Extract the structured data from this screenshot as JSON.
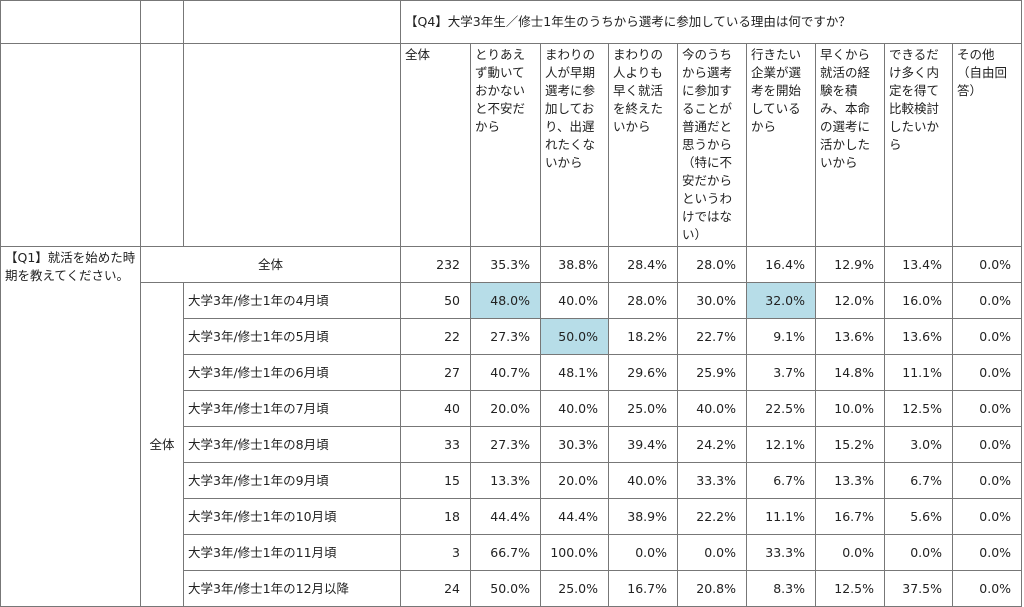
{
  "header": {
    "q4_title": "【Q4】大学3年生／修士1年生のうちから選考に参加している理由は何ですか？",
    "q1_title": "【Q1】就活を始めた時期を教えてください。",
    "columns": [
      "全体",
      "とりあえず動いておかないと不安だから",
      "まわりの人が早期選考に参加しており、出遅れたくないから",
      "まわりの人よりも早く就活を終えたいから",
      "今のうちから選考に参加することが普通だと思うから（特に不安だからというわけではない）",
      "行きたい企業が選考を開始しているから",
      "早くから就活の経験を積み、本命の選考に活かしたいから",
      "できるだけ多く内定を得て比較検討したいから",
      "その他（自由回答）"
    ]
  },
  "table": {
    "total": {
      "label": "全体",
      "n": "232",
      "values": [
        "35.3%",
        "38.8%",
        "28.4%",
        "28.0%",
        "16.4%",
        "12.9%",
        "13.4%",
        "0.0%"
      ]
    },
    "group_label": "全体",
    "rows": [
      {
        "label": "大学3年/修士1年の4月頃",
        "n": "50",
        "values": [
          "48.0%",
          "40.0%",
          "28.0%",
          "30.0%",
          "32.0%",
          "12.0%",
          "16.0%",
          "0.0%"
        ]
      },
      {
        "label": "大学3年/修士1年の5月頃",
        "n": "22",
        "values": [
          "27.3%",
          "50.0%",
          "18.2%",
          "22.7%",
          "9.1%",
          "13.6%",
          "13.6%",
          "0.0%"
        ]
      },
      {
        "label": "大学3年/修士1年の6月頃",
        "n": "27",
        "values": [
          "40.7%",
          "48.1%",
          "29.6%",
          "25.9%",
          "3.7%",
          "14.8%",
          "11.1%",
          "0.0%"
        ]
      },
      {
        "label": "大学3年/修士1年の7月頃",
        "n": "40",
        "values": [
          "20.0%",
          "40.0%",
          "25.0%",
          "40.0%",
          "22.5%",
          "10.0%",
          "12.5%",
          "0.0%"
        ]
      },
      {
        "label": "大学3年/修士1年の8月頃",
        "n": "33",
        "values": [
          "27.3%",
          "30.3%",
          "39.4%",
          "24.2%",
          "12.1%",
          "15.2%",
          "3.0%",
          "0.0%"
        ]
      },
      {
        "label": "大学3年/修士1年の9月頃",
        "n": "15",
        "values": [
          "13.3%",
          "20.0%",
          "40.0%",
          "33.3%",
          "6.7%",
          "13.3%",
          "6.7%",
          "0.0%"
        ]
      },
      {
        "label": "大学3年/修士1年の10月頃",
        "n": "18",
        "values": [
          "44.4%",
          "44.4%",
          "38.9%",
          "22.2%",
          "11.1%",
          "16.7%",
          "5.6%",
          "0.0%"
        ]
      },
      {
        "label": "大学3年/修士1年の11月頃",
        "n": "3",
        "values": [
          "66.7%",
          "100.0%",
          "0.0%",
          "0.0%",
          "33.3%",
          "0.0%",
          "0.0%",
          "0.0%"
        ]
      },
      {
        "label": "大学3年/修士1年の12月以降",
        "n": "24",
        "values": [
          "50.0%",
          "25.0%",
          "16.7%",
          "20.8%",
          "8.3%",
          "12.5%",
          "37.5%",
          "0.0%"
        ]
      }
    ]
  }
}
